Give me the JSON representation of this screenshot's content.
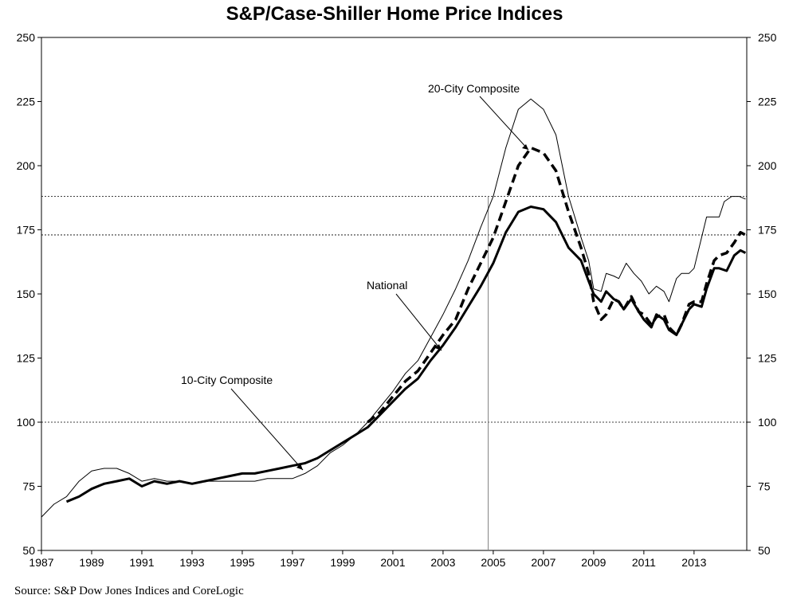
{
  "chart_data": {
    "type": "line",
    "title": "S&P/Case-Shiller Home Price Indices",
    "xlabel": "",
    "ylabel": "",
    "xlim": [
      1987,
      2015.1
    ],
    "ylim": [
      50,
      250
    ],
    "x_ticks": [
      "1987",
      "1989",
      "1991",
      "1993",
      "1995",
      "1997",
      "1999",
      "2001",
      "2003",
      "2005",
      "2007",
      "2009",
      "2011",
      "2013"
    ],
    "y_ticks": [
      "50",
      "75",
      "100",
      "125",
      "150",
      "175",
      "200",
      "225",
      "250"
    ],
    "grid": false,
    "reference_lines": [
      188,
      173,
      100
    ],
    "vertical_marker": 2004.8,
    "series": [
      {
        "name": "20-City Composite",
        "style": "dashed",
        "x": [
          2000.0,
          2000.5,
          2001.0,
          2001.5,
          2002.0,
          2002.5,
          2003.0,
          2003.5,
          2004.0,
          2004.5,
          2005.0,
          2005.5,
          2006.0,
          2006.5,
          2007.0,
          2007.5,
          2008.0,
          2008.5,
          2008.8,
          2009.0,
          2009.3,
          2009.5,
          2009.8,
          2010.0,
          2010.2,
          2010.5,
          2010.8,
          2011.0,
          2011.3,
          2011.5,
          2011.8,
          2012.0,
          2012.3,
          2012.5,
          2012.8,
          2013.0,
          2013.3,
          2013.5,
          2013.8,
          2014.0,
          2014.3,
          2014.6,
          2014.85,
          2015.05
        ],
        "values": [
          100,
          104,
          110,
          116,
          120,
          127,
          134,
          140,
          152,
          162,
          172,
          186,
          200,
          207,
          205,
          198,
          182,
          168,
          158,
          147,
          140,
          142,
          148,
          147,
          144,
          149,
          143,
          142,
          138,
          141,
          142,
          137,
          134,
          138,
          146,
          147,
          147,
          154,
          163,
          165,
          166,
          170,
          174,
          173
        ]
      },
      {
        "name": "National",
        "style": "solid-thick",
        "x": [
          1988.0,
          1988.5,
          1989.0,
          1989.5,
          1990.0,
          1990.5,
          1991.0,
          1991.5,
          1992.0,
          1992.5,
          1993.0,
          1993.5,
          1994.0,
          1994.5,
          1995.0,
          1995.5,
          1996.0,
          1996.5,
          1997.0,
          1997.5,
          1998.0,
          1998.5,
          1999.0,
          1999.5,
          2000.0,
          2000.5,
          2001.0,
          2001.5,
          2002.0,
          2002.5,
          2003.0,
          2003.5,
          2004.0,
          2004.5,
          2005.0,
          2005.5,
          2006.0,
          2006.5,
          2007.0,
          2007.5,
          2008.0,
          2008.5,
          2008.8,
          2009.0,
          2009.3,
          2009.5,
          2009.8,
          2010.0,
          2010.2,
          2010.5,
          2010.8,
          2011.0,
          2011.3,
          2011.5,
          2011.8,
          2012.0,
          2012.3,
          2012.5,
          2012.8,
          2013.0,
          2013.3,
          2013.5,
          2013.8,
          2014.0,
          2014.3,
          2014.6,
          2014.85,
          2015.05
        ],
        "values": [
          69,
          71,
          74,
          76,
          77,
          78,
          75,
          77,
          76,
          77,
          76,
          77,
          78,
          79,
          80,
          80,
          81,
          82,
          83,
          84,
          86,
          89,
          92,
          95,
          98,
          103,
          108,
          113,
          117,
          124,
          130,
          137,
          145,
          153,
          162,
          174,
          182,
          184,
          183,
          178,
          168,
          163,
          155,
          150,
          147,
          151,
          148,
          147,
          144,
          148,
          143,
          140,
          137,
          142,
          140,
          136,
          134,
          138,
          144,
          146,
          145,
          152,
          160,
          160,
          159,
          165,
          167,
          166
        ]
      },
      {
        "name": "10-City Composite",
        "style": "solid-thin",
        "x": [
          1987.0,
          1987.5,
          1988.0,
          1988.5,
          1989.0,
          1989.5,
          1990.0,
          1990.5,
          1991.0,
          1991.5,
          1992.0,
          1992.5,
          1993.0,
          1993.5,
          1994.0,
          1994.5,
          1995.0,
          1995.5,
          1996.0,
          1996.5,
          1997.0,
          1997.5,
          1998.0,
          1998.5,
          1999.0,
          1999.5,
          2000.0,
          2000.5,
          2001.0,
          2001.5,
          2002.0,
          2002.5,
          2003.0,
          2003.5,
          2004.0,
          2004.5,
          2005.0,
          2005.5,
          2006.0,
          2006.5,
          2007.0,
          2007.5,
          2008.0,
          2008.5,
          2008.8,
          2009.0,
          2009.3,
          2009.5,
          2009.8,
          2010.0,
          2010.3,
          2010.6,
          2010.9,
          2011.2,
          2011.5,
          2011.8,
          2012.0,
          2012.3,
          2012.5,
          2012.8,
          2013.0,
          2013.3,
          2013.5,
          2013.8,
          2014.0,
          2014.2,
          2014.5,
          2014.8,
          2015.05
        ],
        "values": [
          63,
          68,
          71,
          77,
          81,
          82,
          82,
          80,
          77,
          78,
          77,
          77,
          76,
          77,
          77,
          77,
          77,
          77,
          78,
          78,
          78,
          80,
          83,
          88,
          91,
          95,
          100,
          106,
          112,
          119,
          124,
          133,
          142,
          152,
          163,
          176,
          188,
          207,
          222,
          226,
          222,
          212,
          188,
          172,
          163,
          152,
          151,
          158,
          157,
          156,
          162,
          158,
          155,
          150,
          153,
          151,
          147,
          156,
          158,
          158,
          160,
          172,
          180,
          180,
          180,
          186,
          188,
          188,
          187
        ]
      }
    ],
    "annotations": [
      "20-City Composite",
      "National",
      "10-City Composite"
    ],
    "source": "Source: S&P Dow Jones Indices and CoreLogic"
  },
  "colors": {
    "line": "#000000",
    "ref_line": "#000000",
    "marker": "#808080",
    "background": "#ffffff"
  }
}
